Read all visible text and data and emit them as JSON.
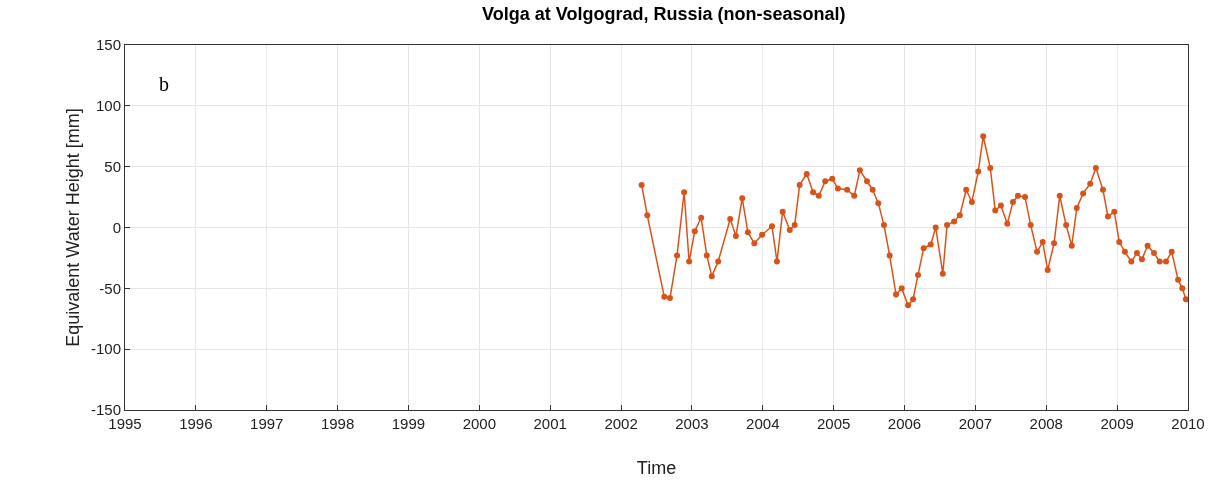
{
  "chart_data": {
    "type": "line",
    "title": "Volga at Volgograd, Russia (non-seasonal)",
    "xlabel": "Time",
    "ylabel": "Equivalent Water Height [mm]",
    "annotations": [
      "b"
    ],
    "x": [
      2002.29,
      2002.37,
      2002.61,
      2002.69,
      2002.79,
      2002.89,
      2002.96,
      2003.04,
      2003.13,
      2003.21,
      2003.28,
      2003.37,
      2003.54,
      2003.62,
      2003.71,
      2003.79,
      2003.88,
      2003.99,
      2004.13,
      2004.2,
      2004.28,
      2004.38,
      2004.45,
      2004.52,
      2004.62,
      2004.71,
      2004.79,
      2004.88,
      2004.98,
      2005.06,
      2005.19,
      2005.29,
      2005.37,
      2005.47,
      2005.55,
      2005.63,
      2005.71,
      2005.79,
      2005.88,
      2005.96,
      2006.05,
      2006.12,
      2006.19,
      2006.27,
      2006.37,
      2006.44,
      2006.54,
      2006.6,
      2006.7,
      2006.78,
      2006.87,
      2006.95,
      2007.04,
      2007.11,
      2007.21,
      2007.28,
      2007.36,
      2007.45,
      2007.53,
      2007.6,
      2007.7,
      2007.78,
      2007.87,
      2007.95,
      2008.02,
      2008.11,
      2008.19,
      2008.28,
      2008.36,
      2008.43,
      2008.52,
      2008.62,
      2008.7,
      2008.8,
      2008.87,
      2008.96,
      2009.03,
      2009.11,
      2009.2,
      2009.28,
      2009.35,
      2009.43,
      2009.52,
      2009.6,
      2009.69,
      2009.77,
      2009.86,
      2009.92,
      2009.97
    ],
    "series": [
      {
        "color": "#d95319",
        "values": [
          35,
          10,
          -57,
          -58,
          -23,
          29,
          -28,
          -3,
          8,
          -23,
          -40,
          -28,
          7,
          -7,
          24,
          -4,
          -13,
          -6,
          1,
          -28,
          13,
          -2,
          2,
          35,
          44,
          29,
          26,
          38,
          40,
          32,
          31,
          26,
          47,
          38,
          31,
          20,
          2,
          -23,
          -55,
          -50,
          -64,
          -59,
          -39,
          -17,
          -14,
          0,
          -38,
          2,
          5,
          10,
          31,
          21,
          46,
          75,
          49,
          14,
          18,
          3,
          21,
          26,
          25,
          2,
          -20,
          -12,
          -35,
          -13,
          26,
          2,
          -15,
          16,
          28,
          36,
          49,
          31,
          9,
          13,
          -12,
          -20,
          -28,
          -21,
          -26,
          -15,
          -21,
          -28,
          -28,
          -20,
          -43,
          -50,
          -59
        ]
      }
    ],
    "xlim": [
      1995,
      2010
    ],
    "xticks": [
      1995,
      1996,
      1997,
      1998,
      1999,
      2000,
      2001,
      2002,
      2003,
      2004,
      2005,
      2006,
      2007,
      2008,
      2009,
      2010
    ],
    "ylim": [
      -150,
      150
    ],
    "yticks": [
      -150,
      -100,
      -50,
      0,
      50,
      100,
      150
    ],
    "grid": true,
    "marker": "circle",
    "line_style": "solid"
  }
}
